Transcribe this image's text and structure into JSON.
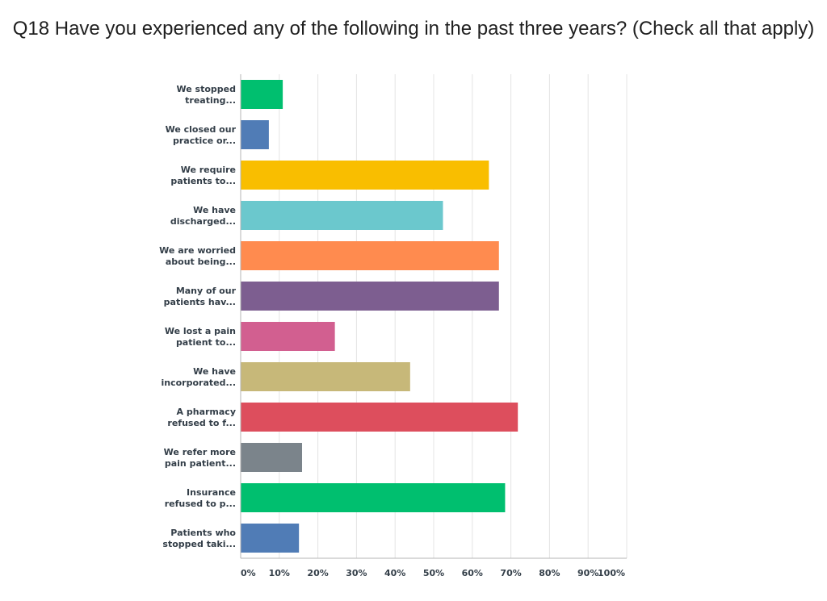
{
  "chart_data": {
    "type": "bar",
    "orientation": "horizontal",
    "title": "Q18 Have you experienced any of the following in the past three years? (Check all that apply)",
    "categories": [
      [
        "We stopped",
        "treating..."
      ],
      [
        "We closed our",
        "practice or..."
      ],
      [
        "We require",
        "patients to..."
      ],
      [
        "We have",
        "discharged..."
      ],
      [
        "We are worried",
        "about being..."
      ],
      [
        "Many of our",
        "patients hav..."
      ],
      [
        "We lost a pain",
        "patient to..."
      ],
      [
        "We have",
        "incorporated..."
      ],
      [
        "A pharmacy",
        "refused to f..."
      ],
      [
        "We refer more",
        "pain patient..."
      ],
      [
        "Insurance",
        "refused to p..."
      ],
      [
        "Patients who",
        "stopped taki..."
      ]
    ],
    "values": [
      10.9,
      7.3,
      64.3,
      52.4,
      66.9,
      66.9,
      24.4,
      43.9,
      71.8,
      15.9,
      68.5,
      15.1
    ],
    "colors": [
      "#00bf6f",
      "#507cb6",
      "#f9be00",
      "#6bc8cd",
      "#ff8b4f",
      "#7d5e90",
      "#d25f90",
      "#c7b879",
      "#dd4e5d",
      "#7b848b",
      "#00bf6f",
      "#507cb6"
    ],
    "xlim": [
      0,
      100
    ],
    "xticks": [
      0,
      10,
      20,
      30,
      40,
      50,
      60,
      70,
      80,
      90,
      100
    ],
    "xtick_labels": [
      "0%",
      "10%",
      "20%",
      "30%",
      "40%",
      "50%",
      "60%",
      "70%",
      "80%",
      "90%",
      "100%"
    ],
    "grid": true,
    "legend": "none"
  }
}
